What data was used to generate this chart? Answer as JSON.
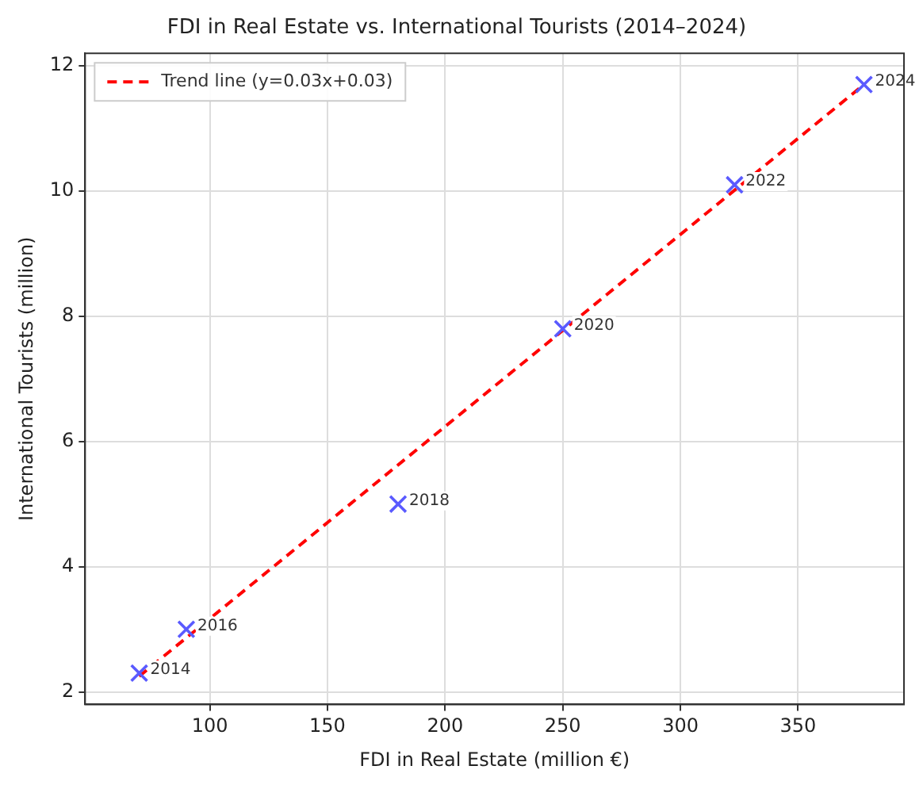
{
  "chart_data": {
    "type": "scatter",
    "title": "FDI in Real Estate vs. International Tourists (2014–2024)",
    "xlabel": "FDI in Real Estate (million €)",
    "ylabel": "International Tourists (million)",
    "xlim": [
      47,
      395
    ],
    "xticks": [
      100,
      150,
      200,
      250,
      300,
      350
    ],
    "ylim": [
      1.8,
      12.2
    ],
    "yticks": [
      2,
      4,
      6,
      8,
      10,
      12
    ],
    "grid": true,
    "legend": "top left",
    "marker": "cross",
    "series": [
      {
        "type": "scatter",
        "color": "#5a5aff",
        "x": [
          70,
          90,
          180,
          250,
          323,
          378
        ],
        "values": [
          2.3,
          3.0,
          5.0,
          7.8,
          10.1,
          11.7
        ]
      },
      {
        "type": "line",
        "name": "Trend line (y=0.03x+0.03)",
        "color": "#ff0000",
        "line_style": "dashed",
        "marker": "none",
        "x": [
          70,
          378
        ],
        "values": [
          2.25,
          11.7
        ]
      }
    ],
    "annotations": [
      {
        "text": "2014",
        "x": 70,
        "y": 2.3
      },
      {
        "text": "2016",
        "x": 90,
        "y": 3.0
      },
      {
        "text": "2018",
        "x": 180,
        "y": 5.0
      },
      {
        "text": "2020",
        "x": 250,
        "y": 7.8
      },
      {
        "text": "2022",
        "x": 323,
        "y": 10.1
      },
      {
        "text": "2024",
        "x": 378,
        "y": 11.7
      }
    ]
  }
}
